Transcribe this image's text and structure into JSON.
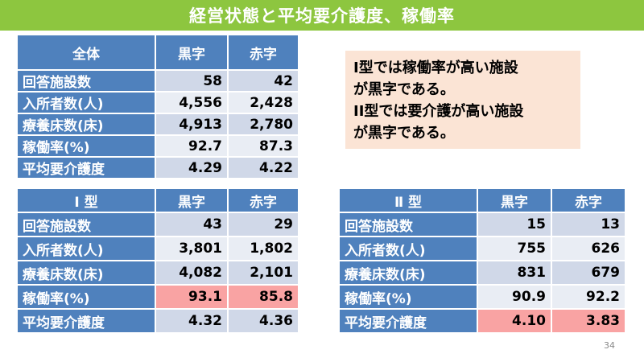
{
  "title": "経営状態と平均要介護度、稼働率",
  "headers": {
    "profit": "黒字",
    "deficit": "赤字"
  },
  "table_all": {
    "title": "全体",
    "rows": [
      {
        "label": "回答施設数",
        "profit": "58",
        "deficit": "42"
      },
      {
        "label": "入所者数(人)",
        "profit": "4,556",
        "deficit": "2,428"
      },
      {
        "label": "療養床数(床)",
        "profit": "4,913",
        "deficit": "2,780"
      },
      {
        "label": "稼働率(%)",
        "profit": "92.7",
        "deficit": "87.3"
      },
      {
        "label": "平均要介護度",
        "profit": "4.29",
        "deficit": "4.22"
      }
    ]
  },
  "table_type1": {
    "title": "Ⅰ 型",
    "rows": [
      {
        "label": "回答施設数",
        "profit": "43",
        "deficit": "29"
      },
      {
        "label": "入所者数(人)",
        "profit": "3,801",
        "deficit": "1,802"
      },
      {
        "label": "療養床数(床)",
        "profit": "4,082",
        "deficit": "2,101"
      },
      {
        "label": "稼働率(%)",
        "profit": "93.1",
        "deficit": "85.8"
      },
      {
        "label": "平均要介護度",
        "profit": "4.32",
        "deficit": "4.36"
      }
    ]
  },
  "table_type2": {
    "title": "Ⅱ 型",
    "rows": [
      {
        "label": "回答施設数",
        "profit": "15",
        "deficit": "13"
      },
      {
        "label": "入所者数(人)",
        "profit": "755",
        "deficit": "626"
      },
      {
        "label": "療養床数(床)",
        "profit": "831",
        "deficit": "679"
      },
      {
        "label": "稼働率(%)",
        "profit": "90.9",
        "deficit": "92.2"
      },
      {
        "label": "平均要介護度",
        "profit": "4.10",
        "deficit": "3.83"
      }
    ]
  },
  "note": {
    "lines": [
      "I型では稼働率が高い施設",
      "が黒字である。",
      "II型では要介護が高い施設",
      "が黒字である。"
    ]
  },
  "highlight_color": "#f9a3a3",
  "header_color": "#4f81bd",
  "title_color": "#8dc63f",
  "page_number": "34"
}
